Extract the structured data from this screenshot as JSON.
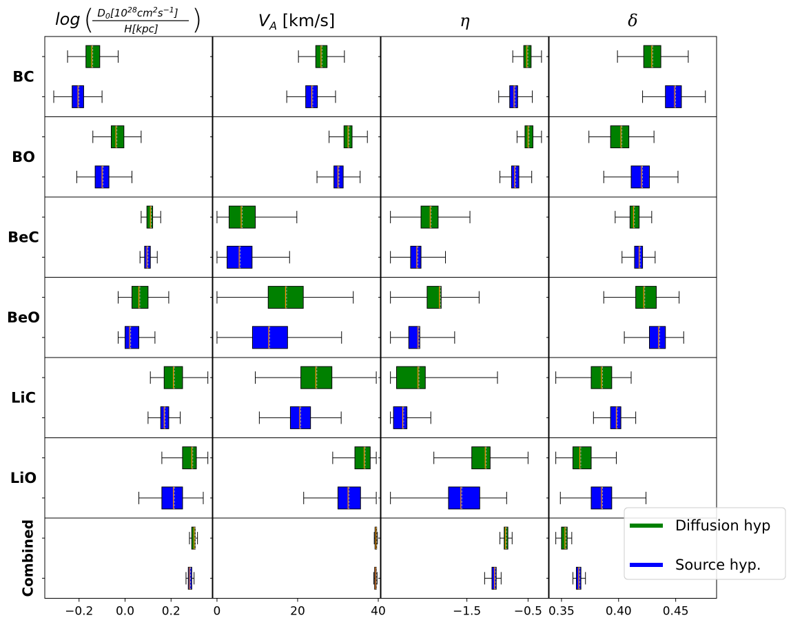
{
  "colors": {
    "diffusion": "#008000",
    "source": "#0000ff",
    "median": "#ff8c00",
    "mean": "#a8a8a8"
  },
  "chart_data": {
    "type": "box",
    "grid": false,
    "legend_position": "bottom-right",
    "legend": [
      {
        "label": "Diffusion hyp",
        "color_key": "diffusion"
      },
      {
        "label": "Source hyp.",
        "color_key": "source"
      }
    ],
    "rows": [
      "BC",
      "BO",
      "BeC",
      "BeO",
      "LiC",
      "LiO",
      "Combined"
    ],
    "columns": [
      {
        "id": "log",
        "title_main": "log",
        "title_num": "D0[10^28 cm^2 s^-1]",
        "title_den": "H[kpc]",
        "xlim": [
          -0.34,
          0.37
        ],
        "ticks": [
          -0.2,
          0.0,
          0.2
        ],
        "tick_labels": [
          "−0.2",
          "0.0",
          "0.2"
        ]
      },
      {
        "id": "va",
        "title_main": "V",
        "title_sub": "A",
        "title_rest": " [km/s]",
        "xlim": [
          -0.5,
          40.0
        ],
        "ticks": [
          0,
          20,
          40
        ],
        "tick_labels": [
          "0",
          "20",
          "40"
        ]
      },
      {
        "id": "eta",
        "title_main": "η",
        "xlim": [
          -2.87,
          -0.2
        ],
        "ticks": [
          -1.5,
          -0.5
        ],
        "tick_labels": [
          "−1.5",
          "−0.5"
        ]
      },
      {
        "id": "delta",
        "title_main": "δ",
        "xlim": [
          0.341,
          0.484
        ],
        "ticks": [
          0.35,
          0.4,
          0.45
        ],
        "tick_labels": [
          "0.35",
          "0.40",
          "0.45"
        ]
      }
    ],
    "boxes": {
      "BC": {
        "log": {
          "diffusion": [
            -0.25,
            -0.17,
            -0.145,
            -0.11,
            -0.03
          ],
          "source": [
            -0.31,
            -0.23,
            -0.205,
            -0.18,
            -0.1
          ]
        },
        "va": {
          "diffusion": [
            20.2,
            24.5,
            25.8,
            27.3,
            31.6
          ],
          "source": [
            17.3,
            22.0,
            23.5,
            24.9,
            29.4
          ]
        },
        "eta": {
          "diffusion": [
            -0.75,
            -0.57,
            -0.52,
            -0.45,
            -0.28
          ],
          "source": [
            -0.98,
            -0.8,
            -0.73,
            -0.67,
            -0.43
          ]
        },
        "delta": {
          "diffusion": [
            0.399,
            0.422,
            0.429,
            0.437,
            0.461
          ],
          "source": [
            0.421,
            0.441,
            0.449,
            0.455,
            0.476
          ]
        }
      },
      "BO": {
        "log": {
          "diffusion": [
            -0.14,
            -0.06,
            -0.04,
            -0.005,
            0.07
          ],
          "source": [
            -0.21,
            -0.13,
            -0.1,
            -0.07,
            0.03
          ]
        },
        "va": {
          "diffusion": [
            27.8,
            31.5,
            32.5,
            33.5,
            37.3
          ],
          "source": [
            24.8,
            29.0,
            30.0,
            31.3,
            35.5
          ]
        },
        "eta": {
          "diffusion": [
            -0.68,
            -0.55,
            -0.5,
            -0.42,
            -0.28
          ],
          "source": [
            -0.96,
            -0.77,
            -0.72,
            -0.65,
            -0.44
          ]
        },
        "delta": {
          "diffusion": [
            0.374,
            0.393,
            0.402,
            0.409,
            0.431
          ],
          "source": [
            0.387,
            0.411,
            0.42,
            0.427,
            0.452
          ]
        }
      },
      "BeC": {
        "log": {
          "diffusion": [
            0.07,
            0.095,
            0.11,
            0.12,
            0.155
          ],
          "source": [
            0.065,
            0.085,
            0.095,
            0.11,
            0.14
          ]
        },
        "va": {
          "diffusion": [
            0.0,
            3.0,
            6.0,
            9.5,
            19.8
          ],
          "source": [
            0.0,
            2.5,
            5.5,
            8.7,
            18.0
          ]
        },
        "eta": {
          "diffusion": [
            -2.75,
            -2.25,
            -2.1,
            -1.97,
            -1.45
          ],
          "source": [
            -2.75,
            -2.42,
            -2.32,
            -2.25,
            -1.85
          ]
        },
        "delta": {
          "diffusion": [
            0.397,
            0.41,
            0.413,
            0.418,
            0.429
          ],
          "source": [
            0.403,
            0.414,
            0.418,
            0.421,
            0.432
          ]
        }
      },
      "BeO": {
        "log": {
          "diffusion": [
            -0.03,
            0.03,
            0.06,
            0.1,
            0.19
          ],
          "source": [
            -0.03,
            0.0,
            0.02,
            0.06,
            0.13
          ]
        },
        "va": {
          "diffusion": [
            0.0,
            12.7,
            17.0,
            21.4,
            33.8
          ],
          "source": [
            0.0,
            8.8,
            12.8,
            17.5,
            30.9
          ]
        },
        "eta": {
          "diffusion": [
            -2.75,
            -2.15,
            -1.95,
            -1.92,
            -1.3
          ],
          "source": [
            -2.75,
            -2.45,
            -2.3,
            -2.27,
            -1.7
          ]
        },
        "delta": {
          "diffusion": [
            0.387,
            0.415,
            0.422,
            0.433,
            0.453
          ],
          "source": [
            0.405,
            0.427,
            0.435,
            0.441,
            0.457
          ]
        }
      },
      "LiC": {
        "log": {
          "diffusion": [
            0.11,
            0.17,
            0.21,
            0.25,
            0.36
          ],
          "source": [
            0.1,
            0.155,
            0.17,
            0.19,
            0.24
          ]
        },
        "va": {
          "diffusion": [
            9.5,
            20.8,
            24.5,
            28.5,
            39.5
          ],
          "source": [
            10.5,
            18.2,
            20.5,
            23.2,
            30.8
          ]
        },
        "eta": {
          "diffusion": [
            -2.75,
            -2.65,
            -2.3,
            -2.18,
            -1.0
          ],
          "source": [
            -2.75,
            -2.7,
            -2.55,
            -2.48,
            -2.09
          ]
        },
        "delta": {
          "diffusion": [
            0.345,
            0.376,
            0.385,
            0.394,
            0.411
          ],
          "source": [
            0.378,
            0.393,
            0.398,
            0.402,
            0.415
          ]
        }
      },
      "LiO": {
        "log": {
          "diffusion": [
            0.16,
            0.25,
            0.29,
            0.31,
            0.36
          ],
          "source": [
            0.06,
            0.16,
            0.21,
            0.25,
            0.34
          ]
        },
        "va": {
          "diffusion": [
            28.7,
            34.2,
            36.5,
            38.0,
            39.5
          ],
          "source": [
            21.5,
            30.0,
            32.5,
            35.6,
            39.5
          ]
        },
        "eta": {
          "diffusion": [
            -2.04,
            -1.42,
            -1.2,
            -1.12,
            -0.5
          ],
          "source": [
            -2.75,
            -1.8,
            -1.6,
            -1.29,
            -0.85
          ]
        },
        "delta": {
          "diffusion": [
            0.345,
            0.36,
            0.366,
            0.376,
            0.398
          ],
          "source": [
            0.349,
            0.376,
            0.385,
            0.394,
            0.424
          ]
        }
      },
      "Combined": {
        "log": {
          "diffusion": [
            0.28,
            0.29,
            0.3,
            0.305,
            0.315
          ],
          "source": [
            0.265,
            0.275,
            0.28,
            0.29,
            0.3
          ]
        },
        "va": {
          "diffusion": [
            39.0,
            39.2,
            39.4,
            39.6,
            39.8
          ],
          "source": [
            38.9,
            39.1,
            39.3,
            39.5,
            39.7
          ]
        },
        "eta": {
          "diffusion": [
            -0.96,
            -0.89,
            -0.87,
            -0.83,
            -0.76
          ],
          "source": [
            -1.21,
            -1.09,
            -1.05,
            -1.02,
            -0.94
          ]
        },
        "delta": {
          "diffusion": [
            0.345,
            0.35,
            0.353,
            0.355,
            0.359
          ],
          "source": [
            0.36,
            0.363,
            0.365,
            0.367,
            0.371
          ]
        }
      }
    }
  }
}
